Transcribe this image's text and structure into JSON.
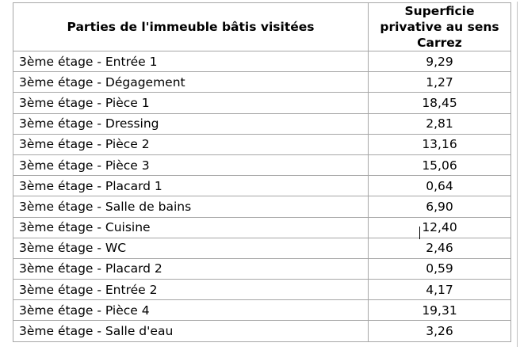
{
  "table": {
    "headers": {
      "parts": "Parties de l'immeuble bâtis visitées",
      "area": "Superficie privative au sens Carrez"
    },
    "rows": [
      {
        "part": "3ème étage - Entrée 1",
        "area": "9,29"
      },
      {
        "part": "3ème étage - Dégagement",
        "area": "1,27"
      },
      {
        "part": "3ème étage - Pièce 1",
        "area": "18,45"
      },
      {
        "part": "3ème étage - Dressing",
        "area": "2,81"
      },
      {
        "part": "3ème étage - Pièce 2",
        "area": "13,16"
      },
      {
        "part": "3ème étage - Pièce 3",
        "area": "15,06"
      },
      {
        "part": "3ème étage - Placard 1",
        "area": "0,64"
      },
      {
        "part": "3ème étage - Salle de bains",
        "area": "6,90"
      },
      {
        "part": "3ème étage - Cuisine",
        "area": "12,40"
      },
      {
        "part": "3ème étage - WC",
        "area": "2,46"
      },
      {
        "part": "3ème étage - Placard 2",
        "area": "0,59"
      },
      {
        "part": "3ème étage - Entrée 2",
        "area": "4,17"
      },
      {
        "part": "3ème étage - Pièce 4",
        "area": "19,31"
      },
      {
        "part": "3ème étage - Salle d'eau",
        "area": "3,26"
      }
    ]
  }
}
